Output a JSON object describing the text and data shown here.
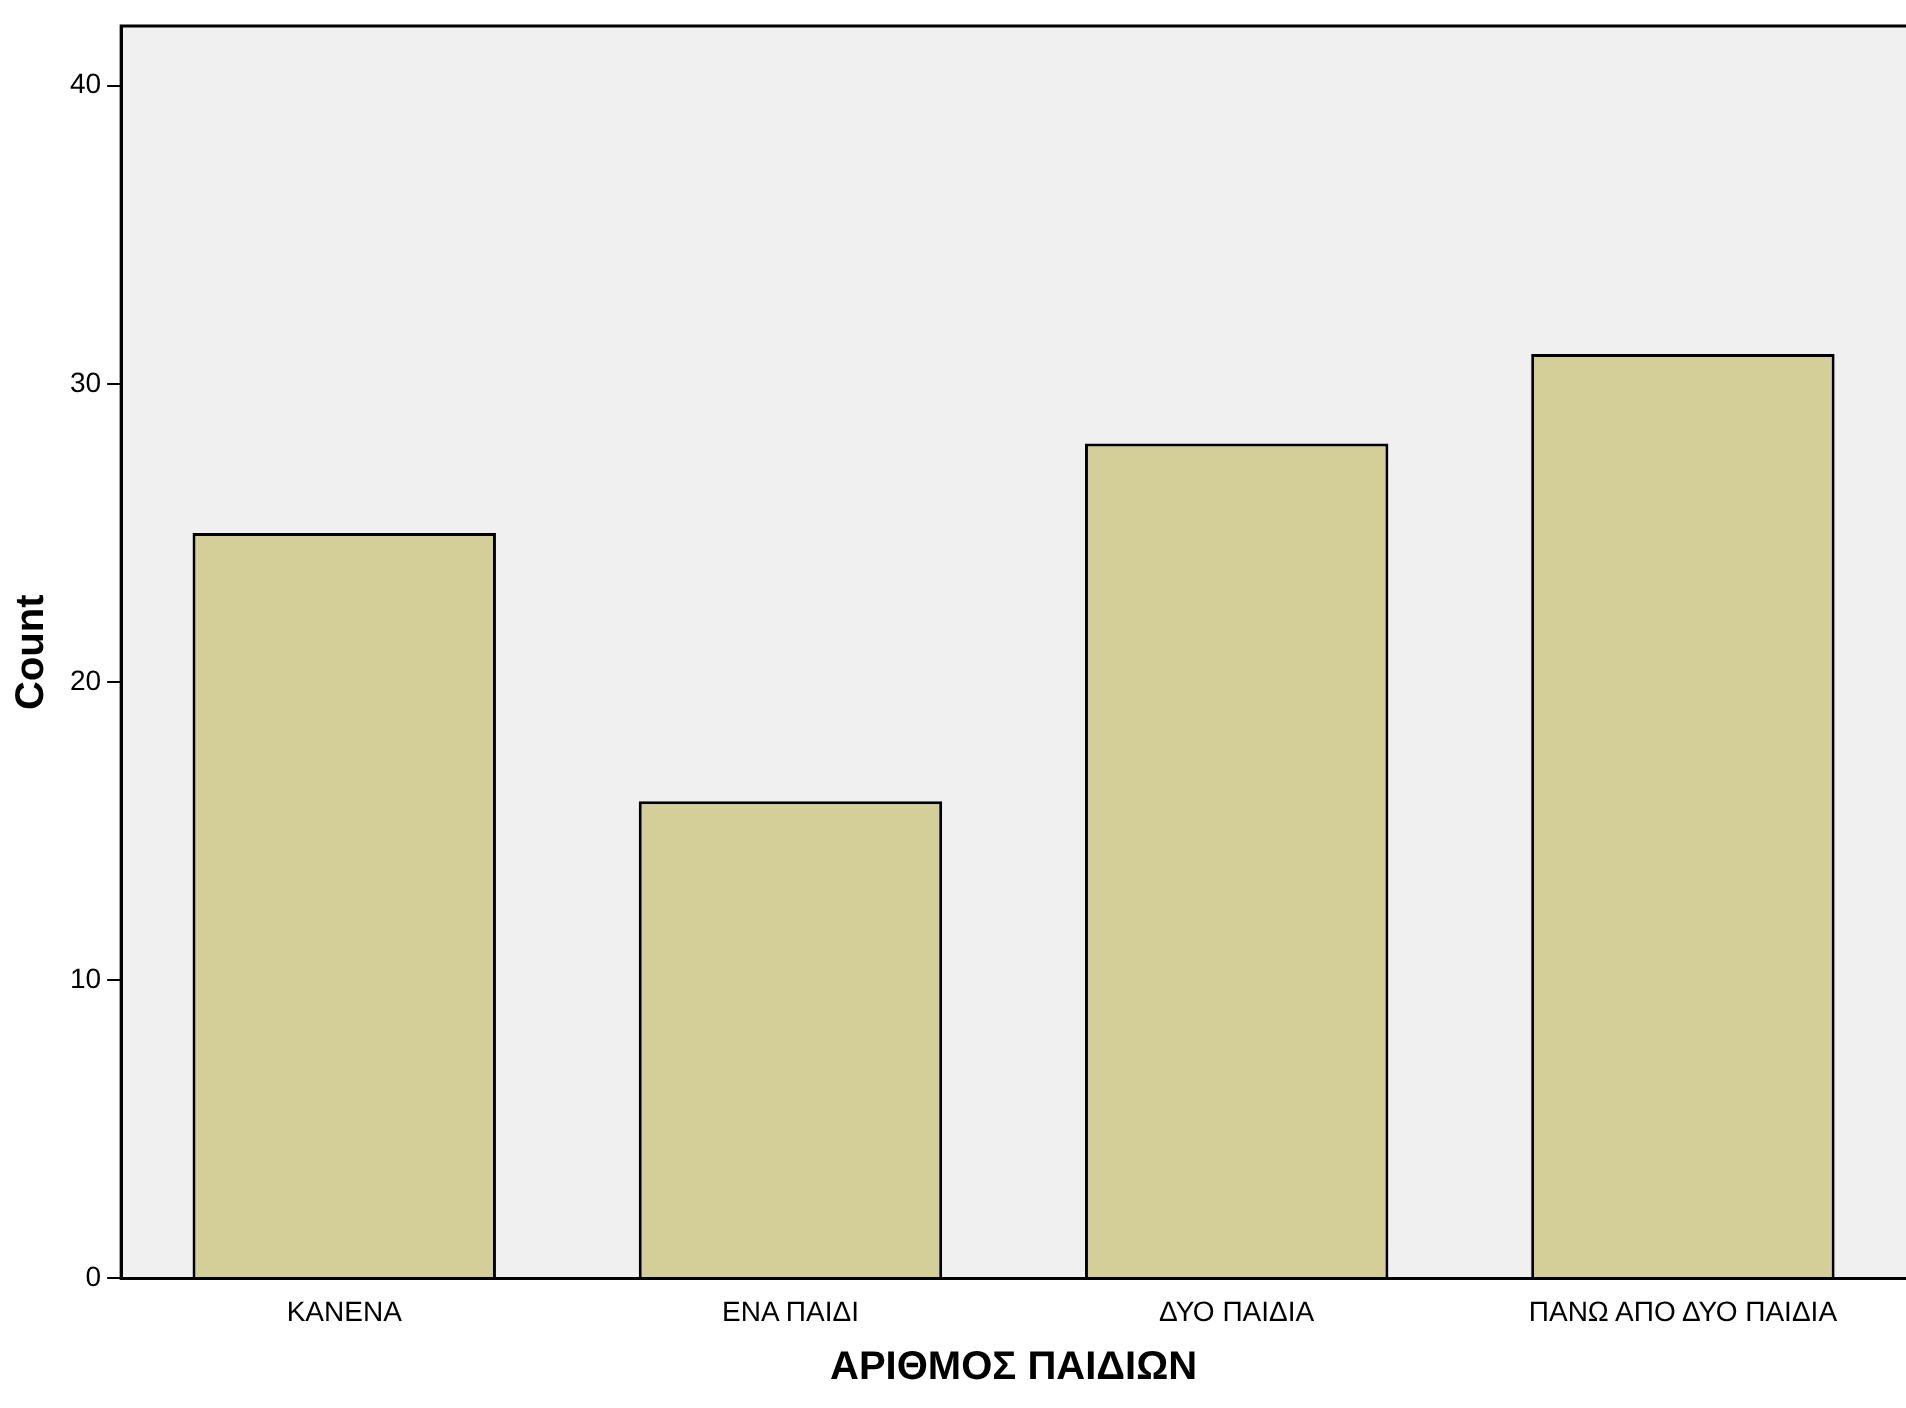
{
  "chart_data": {
    "type": "bar",
    "xlabel": "ΑΡΙΘΜΟΣ ΠΑΙΔΙΩΝ",
    "ylabel": "Count",
    "categories": [
      "ΚΑΝΕΝΑ",
      "ΕΝΑ ΠΑΙΔΙ",
      "ΔΥΟ ΠΑΙΔΙΑ",
      "ΠΑΝΩ ΑΠΟ ΔΥΟ ΠΑΙΔΙΑ"
    ],
    "values": [
      25,
      16,
      28,
      31
    ],
    "color": "#d4cf98",
    "ylim": [
      0,
      42
    ],
    "yticks": [
      0,
      10,
      20,
      30,
      40
    ],
    "grid": false,
    "legend": false
  }
}
